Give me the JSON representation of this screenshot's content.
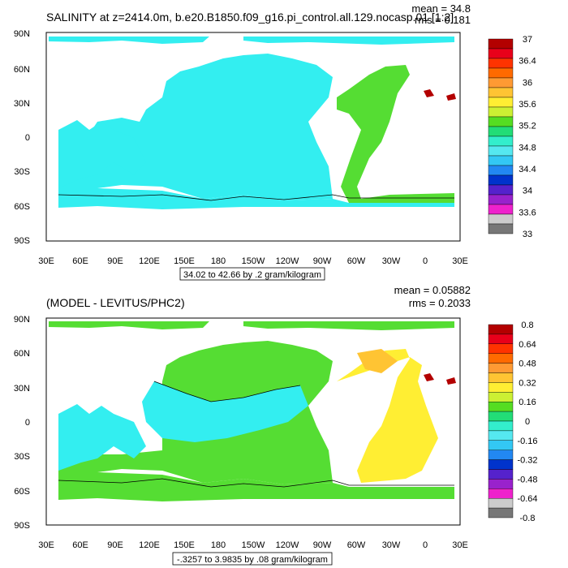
{
  "chart_data": [
    {
      "type": "heatmap",
      "title": "SALINITY at z=2414.0m, b.e20.B1850.f09_g16.pi_control.all.129.nocasp.01 [1:2]",
      "mean_label": "mean = 34.8",
      "rms_label": "rms = 0.181",
      "x_ticks": [
        "30E",
        "60E",
        "90E",
        "120E",
        "150E",
        "180",
        "150W",
        "120W",
        "90W",
        "60W",
        "30W",
        "0",
        "30E"
      ],
      "y_ticks": [
        "90N",
        "60N",
        "30N",
        "0",
        "30S",
        "60S",
        "90S"
      ],
      "range_note": "34.02 to 42.66 by .2 gram/kilogram",
      "colorbar_labels": [
        "37",
        "36.4",
        "36",
        "35.6",
        "35.2",
        "34.8",
        "34.4",
        "34",
        "33.6",
        "33"
      ],
      "colorbar_colors": [
        "#b30000",
        "#e8001a",
        "#ff3300",
        "#ff6a00",
        "#ff9a33",
        "#ffc433",
        "#ffee33",
        "#ccf033",
        "#55dd22",
        "#22dd77",
        "#33eecc",
        "#55e8f0",
        "#33c8f4",
        "#2288f2",
        "#0033cc",
        "#5522cc",
        "#9922cc",
        "#ee22cc",
        "#cccccc",
        "#777777"
      ]
    },
    {
      "type": "heatmap",
      "title": "(MODEL - LEVITUS/PHC2)",
      "mean_label": "mean = 0.05882",
      "rms_label": "rms = 0.2033",
      "x_ticks": [
        "30E",
        "60E",
        "90E",
        "120E",
        "150E",
        "180",
        "150W",
        "120W",
        "90W",
        "60W",
        "30W",
        "0",
        "30E"
      ],
      "y_ticks": [
        "90N",
        "60N",
        "30N",
        "0",
        "30S",
        "60S",
        "90S"
      ],
      "range_note": "-.3257 to 3.9835 by .08 gram/kilogram",
      "colorbar_labels": [
        "0.8",
        "0.64",
        "0.48",
        "0.32",
        "0.16",
        "0",
        "-0.16",
        "-0.32",
        "-0.48",
        "-0.64",
        "-0.8"
      ],
      "colorbar_colors": [
        "#b30000",
        "#e8001a",
        "#ff3300",
        "#ff6a00",
        "#ff9a33",
        "#ffc433",
        "#ffee33",
        "#ccf033",
        "#55dd22",
        "#22dd77",
        "#33eecc",
        "#55e8f0",
        "#33c8f4",
        "#2288f2",
        "#0033cc",
        "#5522cc",
        "#9922cc",
        "#ee22cc",
        "#cccccc",
        "#777777"
      ]
    }
  ]
}
